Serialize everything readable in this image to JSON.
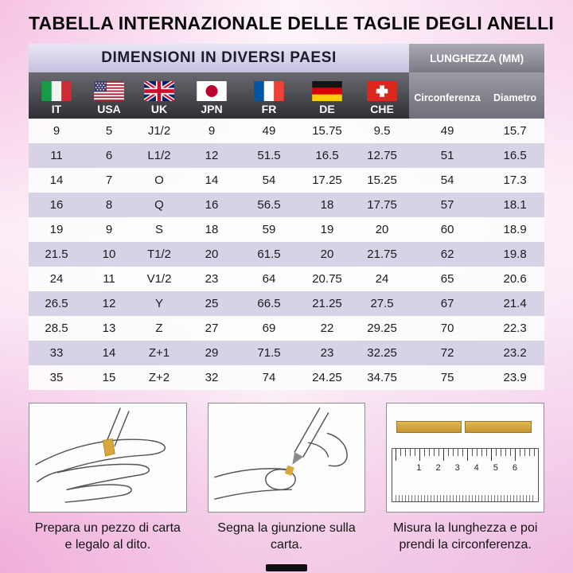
{
  "page": {
    "title": "TABELLA INTERNAZIONALE DELLE TAGLIE DEGLI ANELLI"
  },
  "table": {
    "group_headers": {
      "countries": "DIMENSIONI IN DIVERSI PAESI",
      "length": "LUNGHEZZA (MM)"
    },
    "columns": [
      {
        "label": "IT",
        "icon": "italy-flag-icon"
      },
      {
        "label": "USA",
        "icon": "usa-flag-icon"
      },
      {
        "label": "UK",
        "icon": "uk-flag-icon"
      },
      {
        "label": "JPN",
        "icon": "japan-flag-icon"
      },
      {
        "label": "FR",
        "icon": "france-flag-icon"
      },
      {
        "label": "DE",
        "icon": "germany-flag-icon"
      },
      {
        "label": "CHE",
        "icon": "switzerland-flag-icon"
      }
    ],
    "length_columns": [
      "Circonferenza",
      "Diametro"
    ],
    "rows": [
      [
        "9",
        "5",
        "J1/2",
        "9",
        "49",
        "15.75",
        "9.5",
        "49",
        "15.7"
      ],
      [
        "11",
        "6",
        "L1/2",
        "12",
        "51.5",
        "16.5",
        "12.75",
        "51",
        "16.5"
      ],
      [
        "14",
        "7",
        "O",
        "14",
        "54",
        "17.25",
        "15.25",
        "54",
        "17.3"
      ],
      [
        "16",
        "8",
        "Q",
        "16",
        "56.5",
        "18",
        "17.75",
        "57",
        "18.1"
      ],
      [
        "19",
        "9",
        "S",
        "18",
        "59",
        "19",
        "20",
        "60",
        "18.9"
      ],
      [
        "21.5",
        "10",
        "T1/2",
        "20",
        "61.5",
        "20",
        "21.75",
        "62",
        "19.8"
      ],
      [
        "24",
        "11",
        "V1/2",
        "23",
        "64",
        "20.75",
        "24",
        "65",
        "20.6"
      ],
      [
        "26.5",
        "12",
        "Y",
        "25",
        "66.5",
        "21.25",
        "27.5",
        "67",
        "21.4"
      ],
      [
        "28.5",
        "13",
        "Z",
        "27",
        "69",
        "22",
        "29.25",
        "70",
        "22.3"
      ],
      [
        "33",
        "14",
        "Z+1",
        "29",
        "71.5",
        "23",
        "32.25",
        "72",
        "23.2"
      ],
      [
        "35",
        "15",
        "Z+2",
        "32",
        "74",
        "24.25",
        "34.75",
        "75",
        "23.9"
      ]
    ]
  },
  "instructions": [
    {
      "icon": "hand-with-paper-icon",
      "caption": "Prepara un pezzo di carta e legalo al dito."
    },
    {
      "icon": "mark-junction-icon",
      "caption": "Segna la giunzione sulla carta."
    },
    {
      "icon": "ruler-measure-icon",
      "caption": "Misura la lunghezza e poi prendi la circonferenza.",
      "ruler_numbers": [
        "1",
        "2",
        "3",
        "4",
        "5",
        "6"
      ]
    }
  ],
  "colors": {
    "header_lavender": "#cfc8e3",
    "header_gray": "#8b8b94",
    "flag_row_dark": "#3c3c43",
    "row_alt_lavender": "#d8d2e7",
    "gold_strip": "#d9a83a",
    "background_pink": "#efc2e0"
  }
}
